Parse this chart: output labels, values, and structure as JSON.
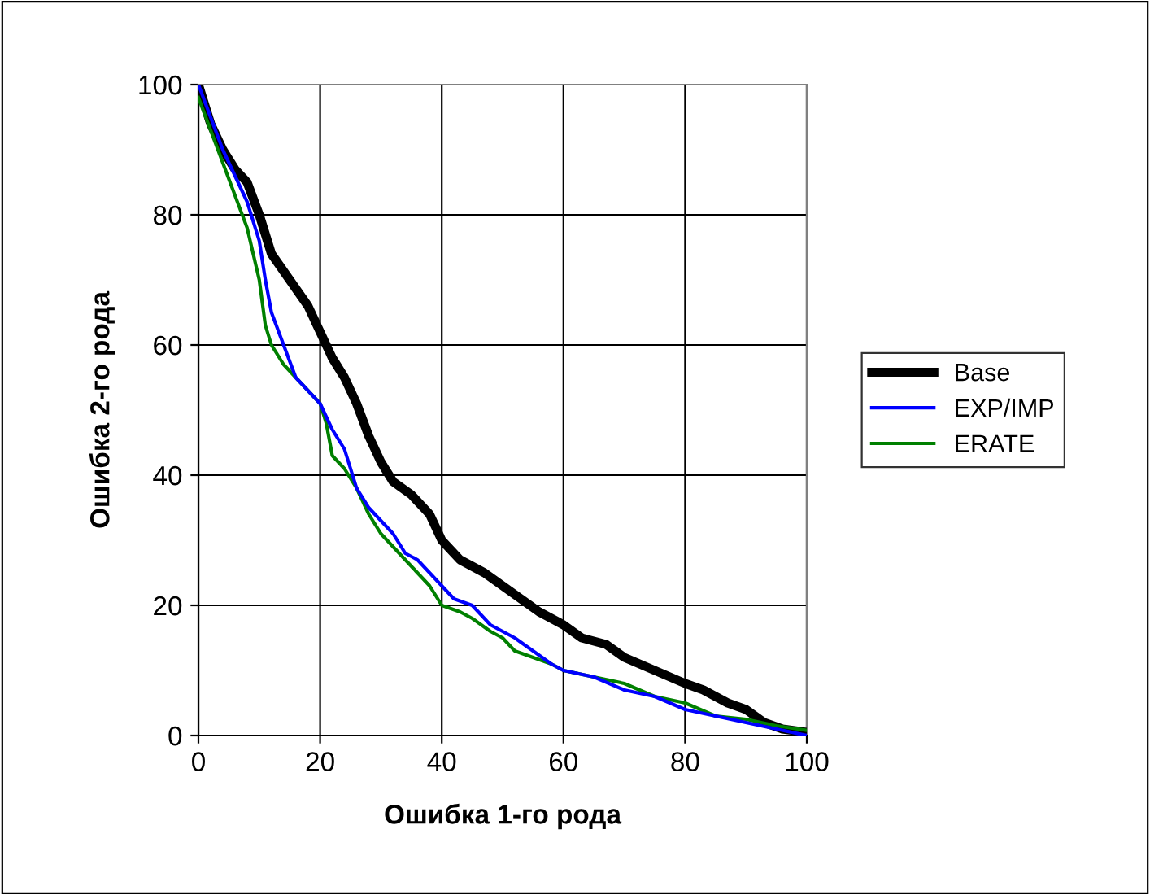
{
  "chart_data": {
    "type": "line",
    "xlabel": "Ошибка 1-го рода",
    "ylabel": "Ошибка 2-го рода",
    "xlim": [
      0,
      100
    ],
    "ylim": [
      0,
      100
    ],
    "xticks": [
      0,
      20,
      40,
      60,
      80,
      100
    ],
    "yticks": [
      0,
      20,
      40,
      60,
      80,
      100
    ],
    "grid": true,
    "legend": "right",
    "marker": "none",
    "line_style": "solid",
    "series": [
      {
        "name": "Base",
        "color": "#000000",
        "x": [
          0,
          2,
          4,
          6,
          8,
          10,
          12,
          15,
          18,
          20,
          22,
          24,
          26,
          28,
          30,
          32,
          35,
          38,
          40,
          43,
          47,
          50,
          53,
          56,
          60,
          63,
          67,
          70,
          75,
          80,
          83,
          87,
          90,
          93,
          96,
          100
        ],
        "values": [
          100,
          94,
          90,
          87,
          85,
          80,
          74,
          70,
          66,
          62,
          58,
          55,
          51,
          46,
          42,
          39,
          37,
          34,
          30,
          27,
          25,
          23,
          21,
          19,
          17,
          15,
          14,
          12,
          10,
          8,
          7,
          5,
          4,
          2,
          1,
          0.5
        ]
      },
      {
        "name": "EXP/IMP",
        "color": "#0000ff",
        "x": [
          0,
          2,
          4,
          6,
          8,
          10,
          11,
          12,
          14,
          16,
          18,
          20,
          22,
          24,
          26,
          28,
          30,
          32,
          34,
          36,
          38,
          40,
          42,
          45,
          48,
          50,
          52,
          55,
          58,
          60,
          65,
          70,
          75,
          80,
          85,
          90,
          95,
          100
        ],
        "values": [
          100,
          95,
          90,
          86,
          82,
          76,
          70,
          65,
          60,
          55,
          53,
          51,
          47,
          44,
          38,
          35,
          33,
          31,
          28,
          27,
          25,
          23,
          21,
          20,
          17,
          16,
          15,
          13,
          11,
          10,
          9,
          7,
          6,
          4,
          3,
          2,
          1,
          0
        ]
      },
      {
        "name": "ERATE",
        "color": "#008000",
        "x": [
          0,
          2,
          4,
          6,
          8,
          10,
          11,
          12,
          14,
          16,
          18,
          20,
          21,
          22,
          24,
          26,
          28,
          30,
          32,
          35,
          38,
          40,
          43,
          45,
          48,
          50,
          52,
          55,
          58,
          60,
          65,
          70,
          75,
          80,
          85,
          90,
          95,
          100
        ],
        "values": [
          98,
          93,
          88,
          83,
          78,
          70,
          63,
          60,
          57,
          55,
          53,
          51,
          48,
          43,
          41,
          38,
          34,
          31,
          29,
          26,
          23,
          20,
          19,
          18,
          16,
          15,
          13,
          12,
          11,
          10,
          9,
          8,
          6,
          5,
          3,
          2.5,
          1.5,
          0.8
        ]
      }
    ]
  }
}
